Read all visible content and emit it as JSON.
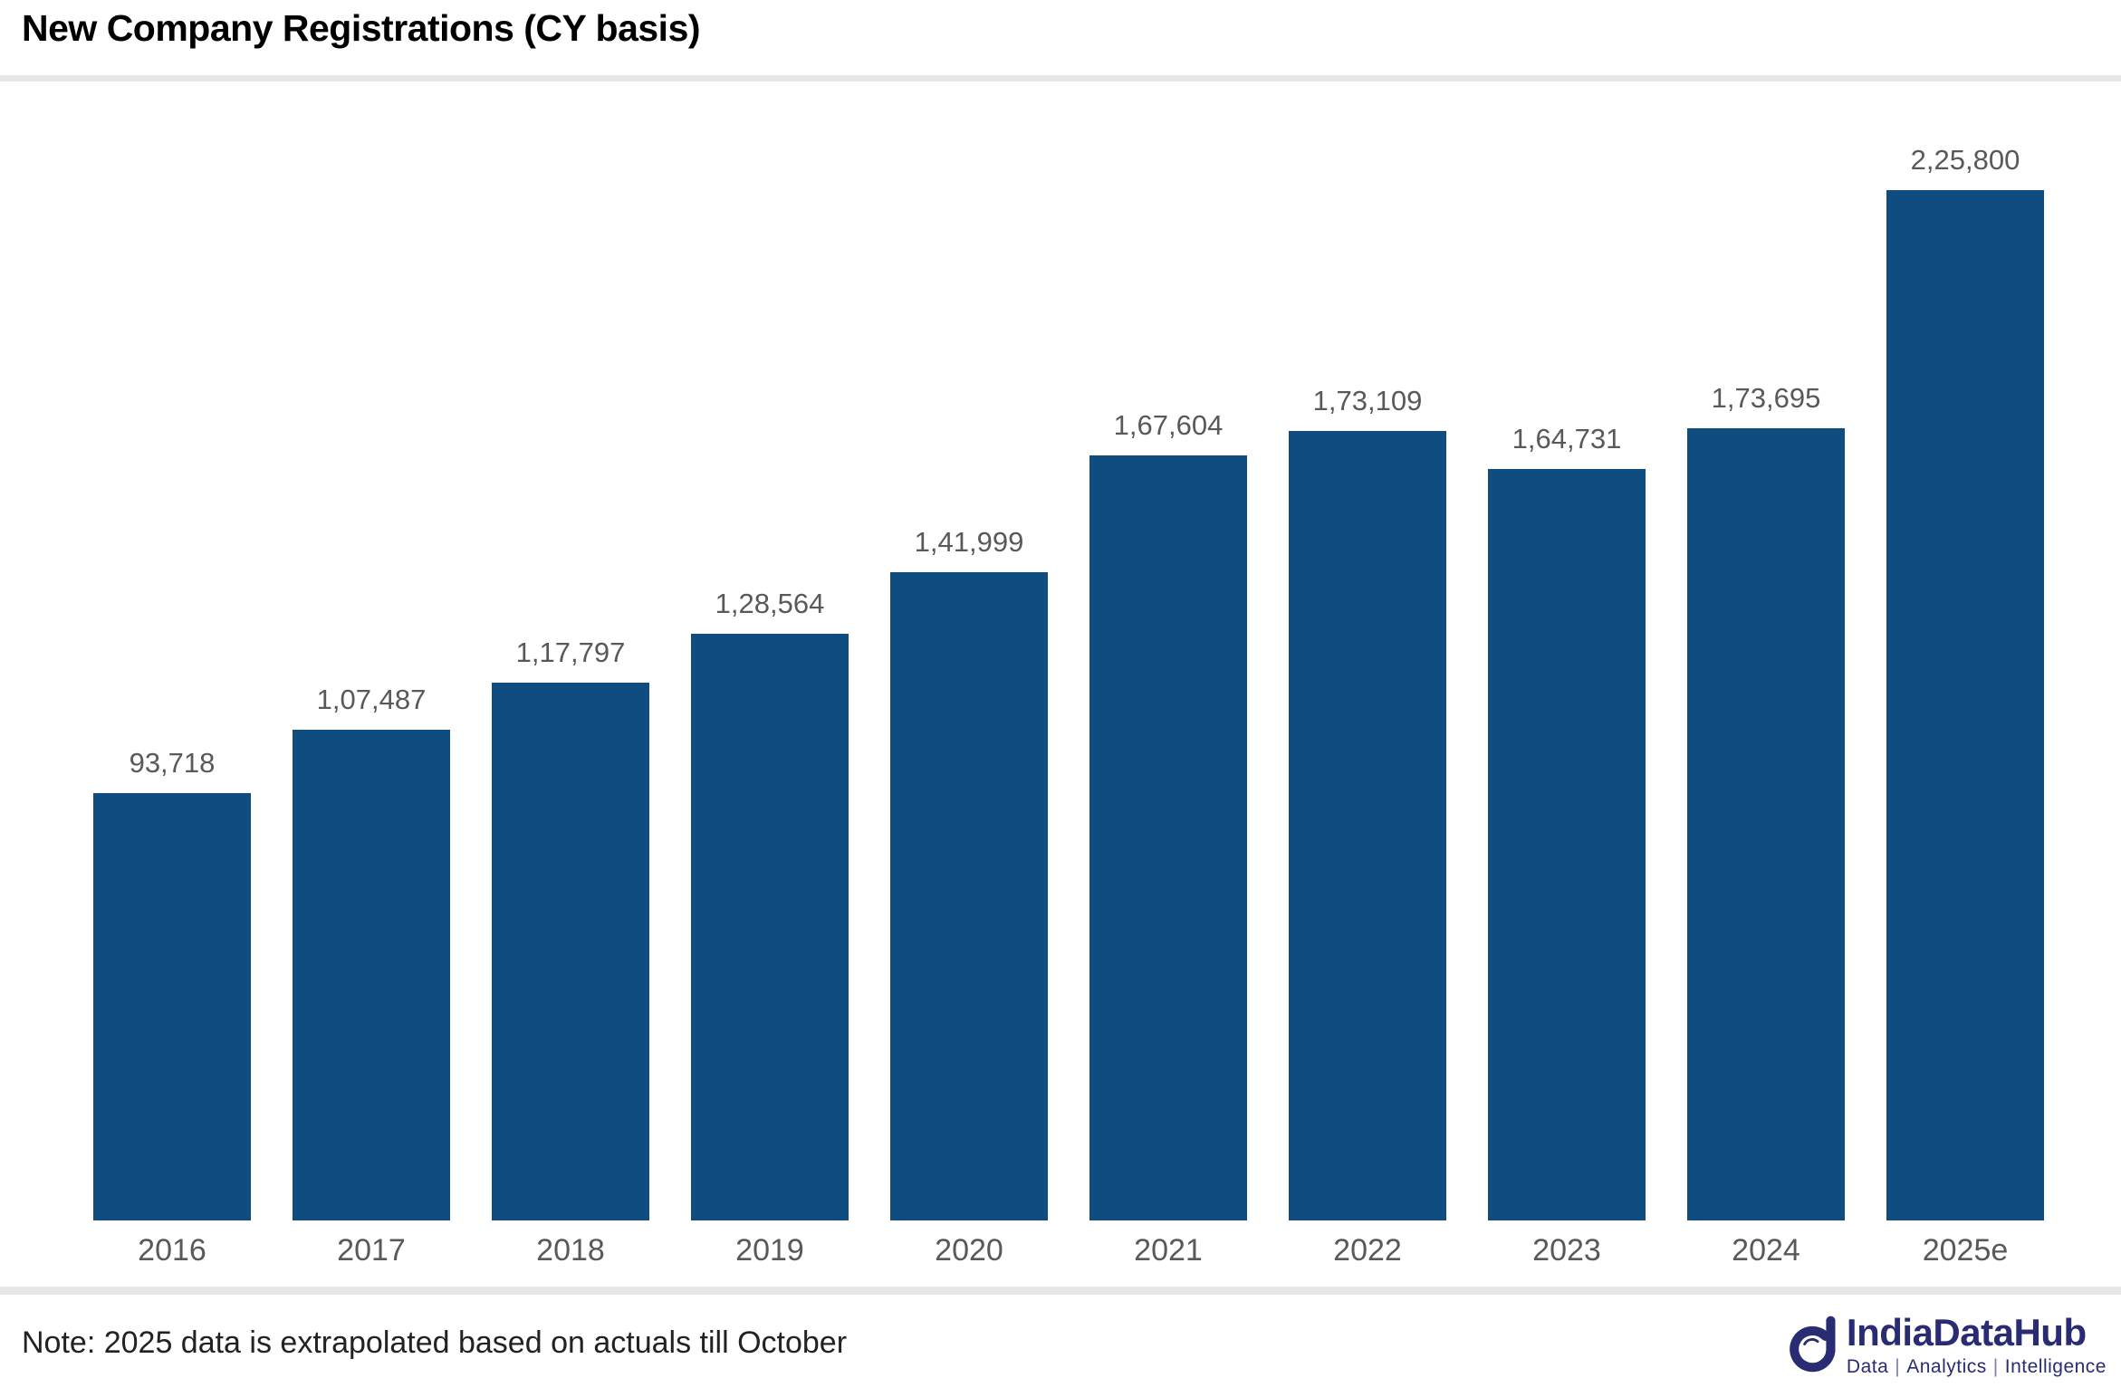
{
  "title": "New Company Registrations (CY basis)",
  "note": "Note: 2025 data is extrapolated based on actuals till October",
  "footer_logo": {
    "name": "IndiaDataHub",
    "tagline_parts": [
      "Data",
      "Analytics",
      "Intelligence"
    ],
    "separator": "|"
  },
  "colors": {
    "bar": "#0F4D80",
    "value_label": "#595959",
    "axis_label": "#595959",
    "divider": "#E7E7E7",
    "logo_navy": "#292C72",
    "title": "#000000"
  },
  "chart_data": {
    "type": "bar",
    "title": "New Company Registrations (CY basis)",
    "categories": [
      "2016",
      "2017",
      "2018",
      "2019",
      "2020",
      "2021",
      "2022",
      "2023",
      "2024",
      "2025e"
    ],
    "values": [
      93718,
      107487,
      117797,
      128564,
      141999,
      167604,
      173109,
      164731,
      173695,
      225800
    ],
    "value_labels": [
      "93,718",
      "1,07,487",
      "1,17,797",
      "1,28,564",
      "1,41,999",
      "1,67,604",
      "1,73,109",
      "1,64,731",
      "1,73,695",
      "2,25,800"
    ],
    "xlabel": "",
    "ylabel": "",
    "ylim": [
      0,
      235000
    ],
    "grid": false,
    "legend": false,
    "bar_color": "#0F4D80",
    "annotation": "Note: 2025 data is extrapolated based on actuals till October"
  }
}
